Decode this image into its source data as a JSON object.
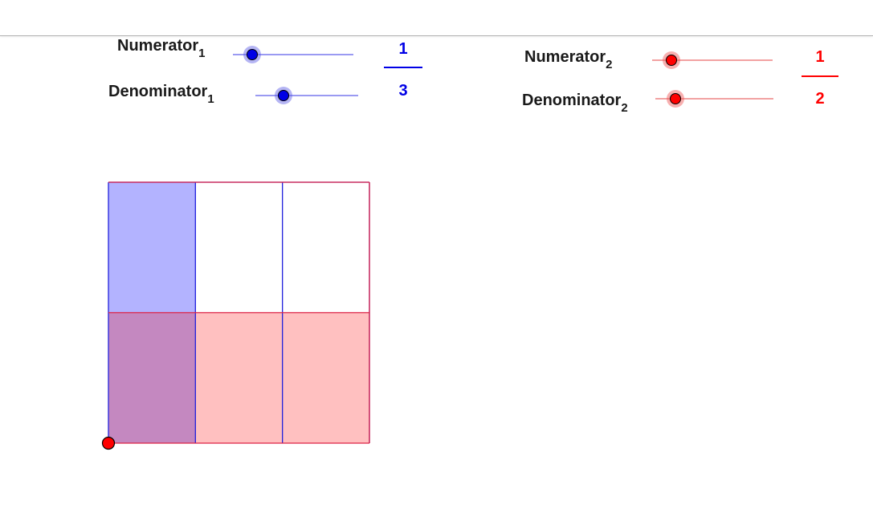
{
  "controls": {
    "numerator1": {
      "label": "Numerator",
      "sub": "1",
      "value": 1,
      "min": 0,
      "max": 10
    },
    "denominator1": {
      "label": "Denominator",
      "sub": "1",
      "value": 3,
      "min": 1,
      "max": 10
    },
    "numerator2": {
      "label": "Numerator",
      "sub": "2",
      "value": 1,
      "min": 0,
      "max": 10
    },
    "denominator2": {
      "label": "Denominator",
      "sub": "2",
      "value": 2,
      "min": 1,
      "max": 10
    }
  },
  "fraction1": {
    "numerator": "1",
    "denominator": "3",
    "color": "#0000e6"
  },
  "fraction2": {
    "numerator": "1",
    "denominator": "2",
    "color": "#ff0000"
  },
  "area_model": {
    "columns": 3,
    "rows": 2,
    "shaded_columns": 1,
    "shaded_rows": 1,
    "blue_fill": "#b3b3ff",
    "red_fill": "#ffc0c0",
    "overlap_fill": "#c488c0",
    "blue_stroke": "#2222dd",
    "red_stroke": "#dd2244",
    "origin_point_color": "#ff0000"
  }
}
